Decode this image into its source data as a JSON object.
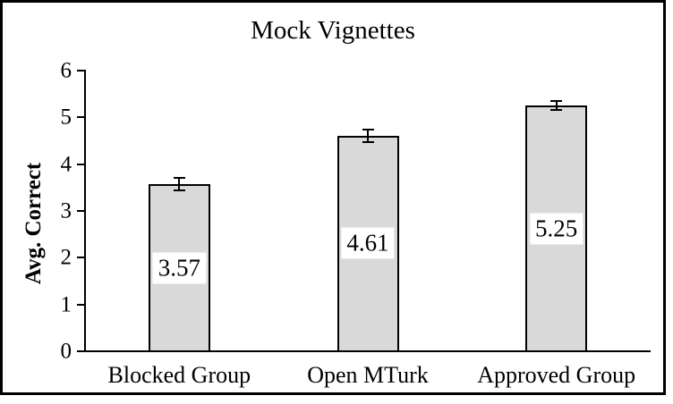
{
  "figure": {
    "border_color": "#000000",
    "background": "#ffffff"
  },
  "chart_data": {
    "type": "bar",
    "title": "Mock Vignettes",
    "xlabel": "",
    "ylabel": "Avg. Correct",
    "categories": [
      "Blocked Group",
      "Open MTurk",
      "Approved Group"
    ],
    "values": [
      3.57,
      4.61,
      5.25
    ],
    "errors": [
      0.14,
      0.13,
      0.1
    ],
    "data_labels": [
      "3.57",
      "4.61",
      "5.25"
    ],
    "data_label_position": "inside-center",
    "data_label_background": "#ffffff",
    "yticks": [
      0,
      1,
      2,
      3,
      4,
      5,
      6
    ],
    "ylim": [
      0,
      6
    ],
    "grid": false,
    "legend": "none",
    "bar_fill": "#d9d9d9",
    "bar_stroke": "#000000",
    "axis_color": "#000000"
  }
}
